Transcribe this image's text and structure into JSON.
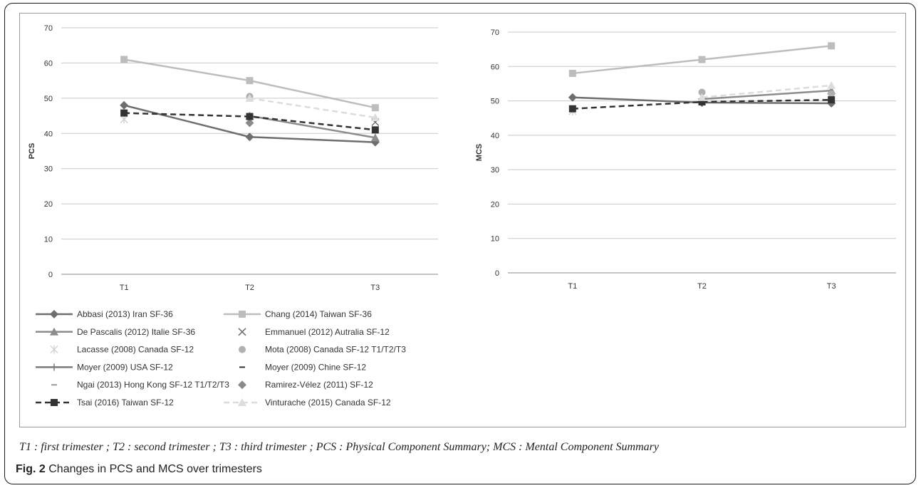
{
  "chart_data": [
    {
      "type": "line",
      "ylabel": "PCS",
      "xlabel": "",
      "categories": [
        "T1",
        "T2",
        "T3"
      ],
      "ylim": [
        0,
        70
      ],
      "yticks": [
        0,
        10,
        20,
        30,
        40,
        50,
        60,
        70
      ],
      "grid": true,
      "series": [
        {
          "name": "Abbasi (2013) Iran SF-36",
          "values": [
            48,
            39,
            37.5
          ]
        },
        {
          "name": "Chang (2014) Taiwan SF-36",
          "values": [
            61,
            55,
            47.3
          ]
        },
        {
          "name": "De Pascalis (2012) Italie SF-36",
          "values": [
            null,
            45,
            38.8
          ]
        },
        {
          "name": "Emmanuel (2012) Autralia SF-12",
          "values": [
            null,
            null,
            43.2
          ]
        },
        {
          "name": "Lacasse (2008) Canada SF-12",
          "values": [
            44,
            null,
            null
          ]
        },
        {
          "name": "Mota (2008) Canada SF-12 T1/T2/T3",
          "values": [
            null,
            50.5,
            null
          ]
        },
        {
          "name": "Moyer (2009) USA SF-12",
          "values": [
            null,
            null,
            null
          ]
        },
        {
          "name": "Moyer (2009) Chine SF-12",
          "values": [
            null,
            null,
            null
          ]
        },
        {
          "name": "Ngai (2013) Hong Kong SF-12 T1/T2/T3",
          "values": [
            null,
            null,
            null
          ]
        },
        {
          "name": "Ramirez-Vélez (2011) SF-12",
          "values": [
            null,
            43,
            null
          ]
        },
        {
          "name": "Tsai (2016) Taiwan SF-12",
          "values": [
            45.8,
            44.8,
            41
          ]
        },
        {
          "name": "Vinturache (2015) Canada SF-12",
          "values": [
            null,
            50,
            44.5
          ]
        }
      ]
    },
    {
      "type": "line",
      "ylabel": "MCS",
      "xlabel": "",
      "categories": [
        "T1",
        "T2",
        "T3"
      ],
      "ylim": [
        0,
        70
      ],
      "yticks": [
        0,
        10,
        20,
        30,
        40,
        50,
        60,
        70
      ],
      "grid": true,
      "series": [
        {
          "name": "Abbasi (2013) Iran SF-36",
          "values": [
            51,
            49.5,
            49.3
          ]
        },
        {
          "name": "Chang (2014) Taiwan SF-36",
          "values": [
            58,
            62,
            66
          ]
        },
        {
          "name": "De Pascalis (2012) Italie SF-36",
          "values": [
            null,
            50.5,
            53
          ]
        },
        {
          "name": "Emmanuel (2012) Autralia SF-12",
          "values": [
            null,
            null,
            null
          ]
        },
        {
          "name": "Lacasse (2008) Canada SF-12",
          "values": [
            47,
            null,
            null
          ]
        },
        {
          "name": "Mota (2008) Canada SF-12 T1/T2/T3",
          "values": [
            null,
            52.5,
            52
          ]
        },
        {
          "name": "Moyer (2009) USA SF-12",
          "values": [
            null,
            49.3,
            null
          ]
        },
        {
          "name": "Moyer (2009) Chine SF-12",
          "values": [
            null,
            null,
            null
          ]
        },
        {
          "name": "Ngai (2013) Hong Kong SF-12 T1/T2/T3",
          "values": [
            null,
            null,
            null
          ]
        },
        {
          "name": "Ramirez-Vélez (2011) SF-12",
          "values": [
            null,
            null,
            null
          ]
        },
        {
          "name": "Tsai (2016) Taiwan SF-12",
          "values": [
            47.7,
            49.7,
            50.3
          ]
        },
        {
          "name": "Vinturache (2015) Canada SF-12",
          "values": [
            null,
            51,
            54.5
          ]
        }
      ]
    }
  ],
  "series_styles": [
    {
      "color": "#6e6e6e",
      "dash": "",
      "marker": "diamond",
      "line": true
    },
    {
      "color": "#bdbdbd",
      "dash": "",
      "marker": "square",
      "line": true
    },
    {
      "color": "#8c8c8c",
      "dash": "",
      "marker": "triangle",
      "line": true
    },
    {
      "color": "#6e6e6e",
      "dash": "",
      "marker": "x",
      "line": false
    },
    {
      "color": "#cfcfcf",
      "dash": "",
      "marker": "star",
      "line": false
    },
    {
      "color": "#b0b0b0",
      "dash": "",
      "marker": "circle",
      "line": false
    },
    {
      "color": "#7a7a7a",
      "dash": "",
      "marker": "plus",
      "line": true
    },
    {
      "color": "#333333",
      "dash": "",
      "marker": "dash",
      "line": false
    },
    {
      "color": "#9a9a9a",
      "dash": "",
      "marker": "dash",
      "line": false
    },
    {
      "color": "#8a8a8a",
      "dash": "",
      "marker": "diamond",
      "line": false
    },
    {
      "color": "#333333",
      "dash": "8,5",
      "marker": "square",
      "line": true
    },
    {
      "color": "#dcdcdc",
      "dash": "8,5",
      "marker": "triangle",
      "line": true
    }
  ],
  "footnote": "T1 : first trimester ; T2 : second trimester ; T3 : third trimester ; PCS : Physical Component Summary; MCS : Mental Component Summary",
  "figure_label": "Fig. 2",
  "figure_caption": "Changes in PCS and MCS over trimesters"
}
